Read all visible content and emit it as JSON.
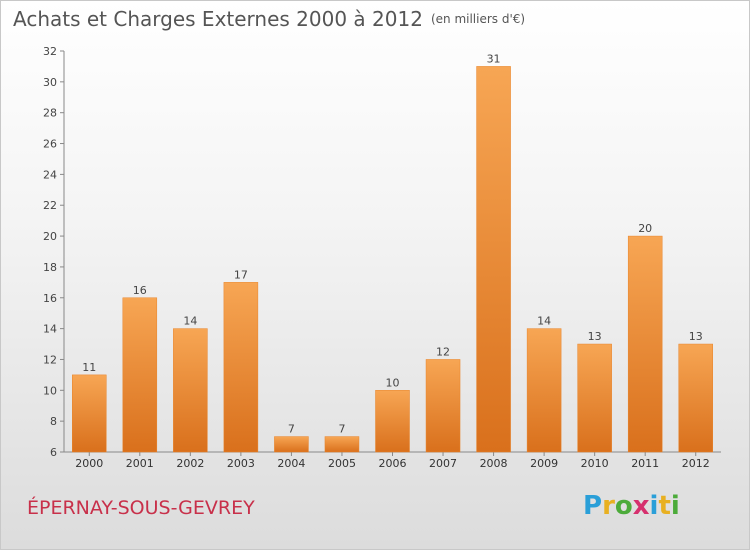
{
  "header": {
    "title": "Achats et Charges Externes 2000 à 2012",
    "unit": "(en milliers d'€)"
  },
  "footer": {
    "place": "ÉPERNAY-SOUS-GEVREY",
    "logo_letters": [
      "P",
      "r",
      "o",
      "x",
      "i",
      "t",
      "i"
    ],
    "logo_colors": [
      "#2a9fd8",
      "#e8b021",
      "#4cab3a",
      "#d6306e",
      "#2a9fd8",
      "#e8b021",
      "#4cab3a"
    ]
  },
  "chart_data": {
    "type": "bar",
    "categories": [
      "2000",
      "2001",
      "2002",
      "2003",
      "2004",
      "2005",
      "2006",
      "2007",
      "2008",
      "2009",
      "2010",
      "2011",
      "2012"
    ],
    "values": [
      11,
      16,
      14,
      17,
      7,
      7,
      10,
      12,
      31,
      14,
      13,
      20,
      13
    ],
    "value_labels": [
      "11",
      "16",
      "14",
      "17",
      "7",
      "7",
      "10",
      "12",
      "31",
      "14",
      "13",
      "20",
      "13"
    ],
    "ylim": [
      6,
      32
    ],
    "y_ticks": [
      6,
      8,
      10,
      12,
      14,
      16,
      18,
      20,
      22,
      24,
      26,
      28,
      30,
      32
    ],
    "y_tick_labels": [
      "6",
      "8",
      "10",
      "12",
      "14",
      "16",
      "18",
      "20",
      "22",
      "24",
      "26",
      "28",
      "30",
      "32"
    ],
    "bar_color": "#f0923a",
    "grid": false
  }
}
